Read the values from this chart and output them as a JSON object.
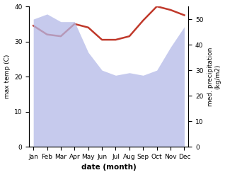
{
  "months": [
    "Jan",
    "Feb",
    "Mar",
    "Apr",
    "May",
    "Jun",
    "Jul",
    "Aug",
    "Sep",
    "Oct",
    "Nov",
    "Dec"
  ],
  "temp": [
    34.5,
    32.0,
    31.5,
    35.0,
    34.0,
    30.5,
    30.5,
    31.5,
    36.0,
    40.0,
    39.0,
    37.5
  ],
  "precip": [
    50,
    52,
    49,
    49,
    37,
    30,
    28,
    29,
    28,
    30,
    39,
    47
  ],
  "temp_color": "#c0392b",
  "precip_fill_color": "#b3b9e8",
  "precip_fill_alpha": 0.75,
  "xlabel": "date (month)",
  "ylabel_left": "max temp (C)",
  "ylabel_right": "med. precipitation\n(kg/m2)",
  "ylim_left": [
    0,
    40
  ],
  "ylim_right": [
    0,
    55
  ],
  "yticks_left": [
    0,
    10,
    20,
    30,
    40
  ],
  "yticks_right": [
    0,
    10,
    20,
    30,
    40,
    50
  ],
  "bg_color": "#ffffff",
  "line_width": 1.8
}
